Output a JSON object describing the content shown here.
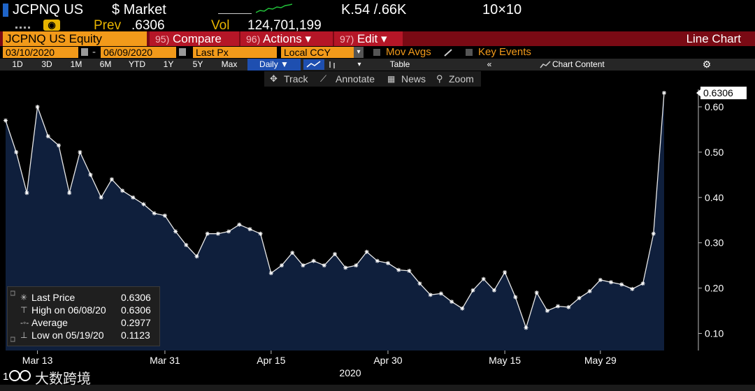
{
  "header": {
    "ticker": "JCPNQ US",
    "market_label": "$ Market",
    "range_label": "K.54 /.66K",
    "size_label": "10×10",
    "prev_label": "Prev",
    "prev_value": ".6306",
    "vol_label": "Vol",
    "vol_value": "124,701,199"
  },
  "toolbar": {
    "security": "JCPNQ US Equity",
    "compare_num": "95)",
    "compare_label": "Compare",
    "actions_num": "96)",
    "actions_label": "Actions ▾",
    "edit_num": "97)",
    "edit_label": "Edit ▾",
    "chart_type": "Line Chart"
  },
  "settings": {
    "start_date": "03/10/2020",
    "end_date": "06/09/2020",
    "dash": "-",
    "field": "Last Px",
    "currency": "Local CCY",
    "mov_avgs": "Mov Avgs",
    "key_events": "Key Events"
  },
  "periods": {
    "items": [
      "1D",
      "3D",
      "1M",
      "6M",
      "YTD",
      "1Y",
      "5Y",
      "Max"
    ],
    "frequency": "Daily ▼",
    "table": "Table",
    "chart_content": "Chart Content"
  },
  "tools": {
    "track": "Track",
    "annotate": "Annotate",
    "news": "News",
    "zoom": "Zoom"
  },
  "legend": {
    "last_label": "Last Price",
    "last_value": "0.6306",
    "high_label": "High on 06/08/20",
    "high_value": "0.6306",
    "avg_label": "Average",
    "avg_value": "0.2977",
    "low_label": "Low on 05/19/20",
    "low_value": "0.1123"
  },
  "watermark": {
    "text": "大数跨境"
  },
  "colors": {
    "area_fill": "#0f1f3c",
    "line": "#e8e8e8",
    "toolbar_red": "#b51627",
    "accent_orange": "#f29a1a",
    "accent_yellow": "#e8b400"
  },
  "chart_data": {
    "type": "area",
    "ylim": [
      0.08,
      0.66
    ],
    "yticks": [
      0.1,
      0.2,
      0.3,
      0.4,
      0.5,
      0.6
    ],
    "ytick_labels": [
      "0.10",
      "0.20",
      "0.30",
      "0.40",
      "0.50",
      "0.60"
    ],
    "xtick_labels": [
      {
        "label": "Mar 13",
        "date": "2020-03-13"
      },
      {
        "label": "Mar 31",
        "date": "2020-03-31"
      },
      {
        "label": "Apr 15",
        "date": "2020-04-15"
      },
      {
        "label": "Apr 30",
        "date": "2020-04-30"
      },
      {
        "label": "May 15",
        "date": "2020-05-15"
      },
      {
        "label": "May 29",
        "date": "2020-05-29"
      }
    ],
    "year_label": "2020",
    "last_value_label": "0.6306",
    "x": [
      "2020-03-10",
      "2020-03-11",
      "2020-03-12",
      "2020-03-13",
      "2020-03-16",
      "2020-03-17",
      "2020-03-18",
      "2020-03-19",
      "2020-03-20",
      "2020-03-23",
      "2020-03-24",
      "2020-03-25",
      "2020-03-26",
      "2020-03-27",
      "2020-03-30",
      "2020-03-31",
      "2020-04-01",
      "2020-04-02",
      "2020-04-03",
      "2020-04-06",
      "2020-04-07",
      "2020-04-08",
      "2020-04-09",
      "2020-04-13",
      "2020-04-14",
      "2020-04-15",
      "2020-04-16",
      "2020-04-17",
      "2020-04-20",
      "2020-04-21",
      "2020-04-22",
      "2020-04-23",
      "2020-04-24",
      "2020-04-27",
      "2020-04-28",
      "2020-04-29",
      "2020-04-30",
      "2020-05-01",
      "2020-05-04",
      "2020-05-05",
      "2020-05-06",
      "2020-05-07",
      "2020-05-08",
      "2020-05-11",
      "2020-05-12",
      "2020-05-13",
      "2020-05-14",
      "2020-05-15",
      "2020-05-18",
      "2020-05-19",
      "2020-05-20",
      "2020-05-21",
      "2020-05-22",
      "2020-05-26",
      "2020-05-27",
      "2020-05-28",
      "2020-05-29",
      "2020-06-01",
      "2020-06-02",
      "2020-06-03",
      "2020-06-04",
      "2020-06-05",
      "2020-06-08"
    ],
    "values": [
      0.57,
      0.5,
      0.41,
      0.6,
      0.535,
      0.515,
      0.41,
      0.5,
      0.45,
      0.4,
      0.44,
      0.415,
      0.4,
      0.385,
      0.365,
      0.36,
      0.325,
      0.295,
      0.27,
      0.32,
      0.32,
      0.325,
      0.34,
      0.33,
      0.32,
      0.233,
      0.25,
      0.278,
      0.25,
      0.26,
      0.25,
      0.275,
      0.245,
      0.25,
      0.28,
      0.26,
      0.255,
      0.24,
      0.238,
      0.21,
      0.185,
      0.188,
      0.17,
      0.155,
      0.195,
      0.22,
      0.195,
      0.235,
      0.18,
      0.1123,
      0.19,
      0.15,
      0.16,
      0.158,
      0.178,
      0.193,
      0.218,
      0.213,
      0.208,
      0.198,
      0.21,
      0.32,
      0.6306
    ]
  }
}
